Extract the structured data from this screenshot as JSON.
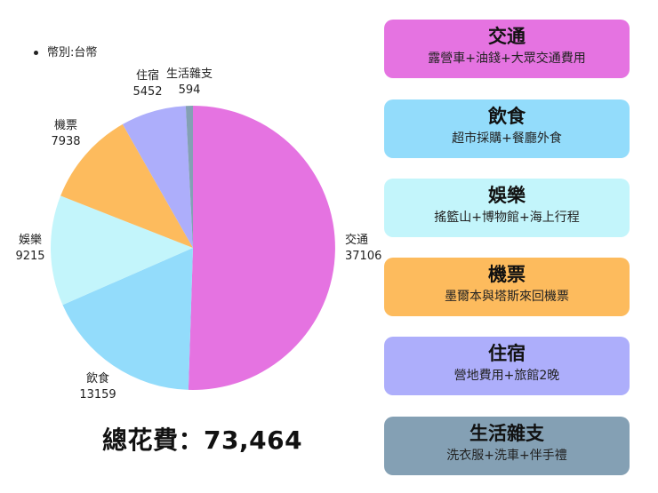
{
  "note": "幣別:台幣",
  "total_text": "總花費：73,464",
  "chart_data": {
    "type": "pie",
    "categories": [
      "交通",
      "飲食",
      "娛樂",
      "機票",
      "住宿",
      "生活雜支"
    ],
    "values": [
      37106,
      13159,
      9215,
      7938,
      5452,
      594
    ],
    "value_labels": [
      "37106",
      "13159",
      "9215",
      "7938",
      "5452",
      "594"
    ],
    "colors": [
      "#e573e1",
      "#93dcfb",
      "#c3f5fb",
      "#fdbb5d",
      "#adaefb",
      "#84a0b4"
    ]
  },
  "cards": [
    {
      "title": "交通",
      "desc": "露營車+油錢+大眾交通費用",
      "color": "#e573e1"
    },
    {
      "title": "飲食",
      "desc": "超市採購+餐廳外食",
      "color": "#93dcfb"
    },
    {
      "title": "娛樂",
      "desc": "搖籃山+博物館+海上行程",
      "color": "#c3f5fb"
    },
    {
      "title": "機票",
      "desc": "墨爾本與塔斯來回機票",
      "color": "#fdbb5d"
    },
    {
      "title": "住宿",
      "desc": "營地費用+旅館2晚",
      "color": "#adaefb"
    },
    {
      "title": "生活雜支",
      "desc": "洗衣服+洗車+伴手禮",
      "color": "#84a0b4"
    }
  ]
}
